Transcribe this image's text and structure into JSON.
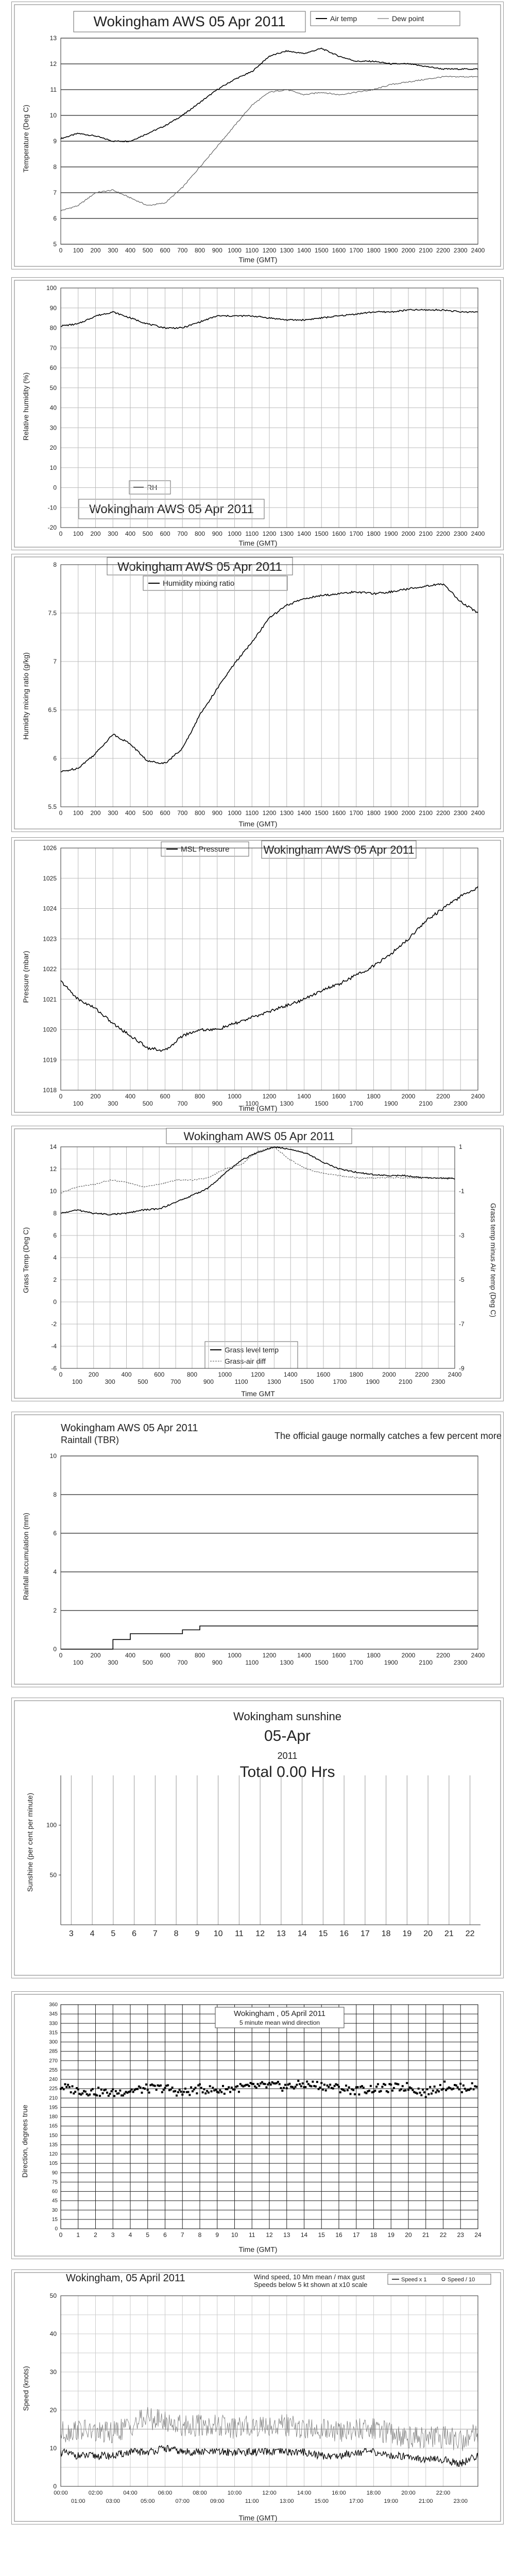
{
  "charts": [
    {
      "title": "Wokingham AWS 05 Apr 2011",
      "xlabel": "Time (GMT)",
      "ylabel": "Temperature (Deg C)",
      "legend": [
        "Air temp",
        "Dew point"
      ]
    },
    {
      "title": "Wokingham AWS 05 Apr 2011",
      "xlabel": "Time (GMT)",
      "ylabel": "Relative humidity (%)",
      "legend": [
        "RH"
      ]
    },
    {
      "title": "Wokingham AWS 05 Apr 2011",
      "xlabel": "Time (GMT)",
      "ylabel": "Humidity mixing ratio (g/kg)",
      "legend": [
        "Humidity mixing ratio"
      ]
    },
    {
      "title": "Wokingham AWS 05 Apr 2011",
      "xlabel": "Time (GMT)",
      "ylabel": "Pressure (mbar)",
      "legend": [
        "MSL Pressure"
      ]
    },
    {
      "title": "Wokingham AWS 05 Apr 2011",
      "xlabel": "Time GMT",
      "ylabel": "Grass Temp (Deg C)",
      "ylabel2": "Grass temp minus Air temp (Deg C)",
      "legend": [
        "Grass level temp",
        "Grass-air diff"
      ]
    },
    {
      "title": "Wokingham AWS 05 Apr 2011",
      "subtitle": "Raintall (TBR)",
      "note": "The official gauge normally catches a few percent more",
      "ylabel": "Rainfall accumulation (mm)"
    },
    {
      "title": "Wokingham sunshine",
      "date": "05-Apr",
      "year": "2011",
      "total": "Total 0.00 Hrs",
      "ylabel": "Sunshine (per cent per minute)"
    },
    {
      "title": "Wokingham , 05 April 2011",
      "subtitle": "5 minute mean wind direction",
      "xlabel": "Time (GMT)",
      "ylabel": "Direction, degrees true"
    },
    {
      "title": "Wokingham,  05 April 2011",
      "subtitle1": "Wind speed, 10 Mm mean / max gust",
      "subtitle2": "Speeds below 5 kt shown at x10 scale",
      "xlabel": "Time (GMT)",
      "ylabel": "Speed (knots)",
      "legend": [
        "Speed x 1",
        "Speed / 10"
      ]
    }
  ],
  "chart_data": [
    {
      "type": "line",
      "title": "Wokingham AWS 05 Apr 2011",
      "xlabel": "Time (GMT)",
      "ylabel": "Temperature (Deg C)",
      "xlim": [
        0,
        2400
      ],
      "ylim": [
        5,
        13
      ],
      "xticks": [
        0,
        100,
        200,
        300,
        400,
        500,
        600,
        700,
        800,
        900,
        1000,
        1100,
        1200,
        1300,
        1400,
        1500,
        1600,
        1700,
        1800,
        1900,
        2000,
        2100,
        2200,
        2300,
        2400
      ],
      "yticks": [
        5,
        6,
        7,
        8,
        9,
        10,
        11,
        12,
        13
      ],
      "grid": "horizontal",
      "legend_position": "top",
      "series": [
        {
          "name": "Air temp",
          "x": [
            0,
            100,
            200,
            300,
            400,
            500,
            600,
            700,
            800,
            900,
            1000,
            1100,
            1200,
            1300,
            1400,
            1500,
            1600,
            1700,
            1800,
            1900,
            2000,
            2100,
            2200,
            2300,
            2400
          ],
          "values": [
            9.1,
            9.3,
            9.2,
            9.0,
            9.0,
            9.3,
            9.6,
            10.0,
            10.5,
            11.0,
            11.4,
            11.7,
            12.3,
            12.5,
            12.4,
            12.6,
            12.3,
            12.1,
            12.1,
            12.0,
            12.0,
            11.9,
            11.8,
            11.8,
            11.8
          ]
        },
        {
          "name": "Dew point",
          "x": [
            0,
            100,
            200,
            300,
            400,
            500,
            600,
            700,
            800,
            900,
            1000,
            1100,
            1200,
            1300,
            1400,
            1500,
            1600,
            1700,
            1800,
            1900,
            2000,
            2100,
            2200,
            2300,
            2400
          ],
          "values": [
            6.3,
            6.5,
            7.0,
            7.1,
            6.8,
            6.5,
            6.6,
            7.2,
            8.0,
            8.8,
            9.6,
            10.4,
            10.9,
            11.0,
            10.8,
            10.9,
            10.8,
            10.9,
            11.0,
            11.2,
            11.3,
            11.4,
            11.5,
            11.5,
            11.5
          ]
        }
      ]
    },
    {
      "type": "line",
      "title": "Wokingham AWS 05 Apr 2011",
      "xlabel": "Time (GMT)",
      "ylabel": "Relative humidity (%)",
      "xlim": [
        0,
        2400
      ],
      "ylim": [
        -20,
        100
      ],
      "xticks": [
        0,
        100,
        200,
        300,
        400,
        500,
        600,
        700,
        800,
        900,
        1000,
        1100,
        1200,
        1300,
        1400,
        1500,
        1600,
        1700,
        1800,
        1900,
        2000,
        2100,
        2200,
        2300,
        2400
      ],
      "yticks": [
        -20,
        -10,
        0,
        10,
        20,
        30,
        40,
        50,
        60,
        70,
        80,
        90,
        100
      ],
      "grid": true,
      "legend_position": "bottom-left",
      "series": [
        {
          "name": "RH",
          "x": [
            0,
            100,
            200,
            300,
            400,
            500,
            600,
            700,
            800,
            900,
            1000,
            1100,
            1200,
            1300,
            1400,
            1500,
            1600,
            1700,
            1800,
            1900,
            2000,
            2100,
            2200,
            2300,
            2400
          ],
          "values": [
            81,
            82,
            86,
            88,
            85,
            82,
            80,
            80,
            83,
            86,
            86,
            86,
            85,
            84,
            84,
            85,
            86,
            87,
            88,
            88,
            89,
            89,
            89,
            88,
            88
          ]
        }
      ]
    },
    {
      "type": "line",
      "title": "Wokingham AWS 05 Apr 2011",
      "xlabel": "Time (GMT)",
      "ylabel": "Humidity mixing ratio (g/kg)",
      "xlim": [
        0,
        2400
      ],
      "ylim": [
        5.5,
        8
      ],
      "xticks": [
        0,
        100,
        200,
        300,
        400,
        500,
        600,
        700,
        800,
        900,
        1000,
        1100,
        1200,
        1300,
        1400,
        1500,
        1600,
        1700,
        1800,
        1900,
        2000,
        2100,
        2200,
        2300,
        2400
      ],
      "yticks": [
        5.5,
        6,
        6.5,
        7,
        7.5,
        8
      ],
      "grid": true,
      "legend_position": "top-left",
      "series": [
        {
          "name": "Humidity mixing ratio",
          "x": [
            0,
            100,
            200,
            300,
            400,
            500,
            600,
            700,
            800,
            900,
            1000,
            1100,
            1200,
            1300,
            1400,
            1500,
            1600,
            1700,
            1800,
            1900,
            2000,
            2100,
            2200,
            2300,
            2400
          ],
          "values": [
            5.86,
            5.9,
            6.05,
            6.25,
            6.15,
            5.97,
            5.95,
            6.1,
            6.45,
            6.72,
            6.98,
            7.2,
            7.45,
            7.58,
            7.65,
            7.68,
            7.7,
            7.72,
            7.7,
            7.72,
            7.75,
            7.78,
            7.8,
            7.62,
            7.5
          ]
        }
      ]
    },
    {
      "type": "line",
      "title": "Wokingham AWS 05 Apr 2011",
      "xlabel": "Time (GMT)",
      "ylabel": "Pressure (mbar)",
      "xlim": [
        0,
        2400
      ],
      "ylim": [
        1018,
        1026
      ],
      "xticks": [
        0,
        100,
        200,
        300,
        400,
        500,
        600,
        700,
        800,
        900,
        1000,
        1100,
        1200,
        1300,
        1400,
        1500,
        1600,
        1700,
        1800,
        1900,
        2000,
        2100,
        2200,
        2300,
        2400
      ],
      "yticks": [
        1018,
        1019,
        1020,
        1021,
        1022,
        1023,
        1024,
        1025,
        1026
      ],
      "grid": true,
      "legend_position": "top-left",
      "series": [
        {
          "name": "MSL Pressure",
          "x": [
            0,
            100,
            200,
            300,
            400,
            500,
            600,
            700,
            800,
            900,
            1000,
            1100,
            1200,
            1300,
            1400,
            1500,
            1600,
            1700,
            1800,
            1900,
            2000,
            2100,
            2200,
            2300,
            2400
          ],
          "values": [
            1021.6,
            1021.0,
            1020.7,
            1020.2,
            1019.8,
            1019.4,
            1019.3,
            1019.8,
            1020.0,
            1020.0,
            1020.2,
            1020.4,
            1020.6,
            1020.8,
            1021.0,
            1021.3,
            1021.5,
            1021.8,
            1022.1,
            1022.5,
            1023.0,
            1023.6,
            1024.0,
            1024.4,
            1024.7
          ]
        }
      ]
    },
    {
      "type": "line",
      "title": "Wokingham AWS 05 Apr 2011",
      "xlabel": "Time GMT",
      "ylabel": "Grass Temp (Deg C)",
      "ylabel2": "Grass temp minus Air temp (Deg C)",
      "xlim": [
        0,
        2400
      ],
      "ylim": [
        -6,
        14
      ],
      "ylim2": [
        -9,
        1
      ],
      "xticks": [
        0,
        100,
        200,
        300,
        400,
        500,
        600,
        700,
        800,
        900,
        1000,
        1100,
        1200,
        1300,
        1400,
        1500,
        1600,
        1700,
        1800,
        1900,
        2000,
        2100,
        2200,
        2300,
        2400
      ],
      "yticks": [
        -6,
        -4,
        -2,
        0,
        2,
        4,
        6,
        8,
        10,
        12,
        14
      ],
      "yticks2": [
        -9,
        -7,
        -5,
        -3,
        -1,
        1
      ],
      "grid": true,
      "legend_position": "bottom-left",
      "series": [
        {
          "name": "Grass level temp",
          "axis": "left",
          "x": [
            0,
            100,
            200,
            300,
            400,
            500,
            600,
            700,
            800,
            900,
            1000,
            1100,
            1200,
            1300,
            1400,
            1500,
            1600,
            1700,
            1800,
            1900,
            2000,
            2100,
            2200,
            2300,
            2400
          ],
          "values": [
            8.0,
            8.3,
            8.0,
            7.9,
            8.0,
            8.3,
            8.4,
            9.0,
            9.6,
            10.3,
            11.6,
            12.8,
            13.5,
            14.0,
            13.8,
            13.4,
            12.6,
            12.0,
            11.7,
            11.5,
            11.4,
            11.4,
            11.2,
            11.2,
            11.1
          ]
        },
        {
          "name": "Grass-air diff",
          "axis": "right",
          "x": [
            0,
            100,
            200,
            300,
            400,
            500,
            600,
            700,
            800,
            900,
            1000,
            1100,
            1200,
            1300,
            1400,
            1500,
            1600,
            1700,
            1800,
            1900,
            2000,
            2100,
            2200,
            2300,
            2400
          ],
          "values": [
            -1.1,
            -0.8,
            -0.7,
            -0.5,
            -0.6,
            -0.8,
            -0.7,
            -0.5,
            -0.5,
            -0.4,
            0.0,
            0.2,
            0.8,
            1.0,
            0.4,
            0.0,
            -0.2,
            -0.3,
            -0.4,
            -0.4,
            -0.4,
            -0.4,
            -0.4,
            -0.4,
            -0.4
          ]
        }
      ]
    },
    {
      "type": "line",
      "title": "Wokingham AWS 05 Apr 2011",
      "ylabel": "Rainfall accumulation (mm)",
      "xlim": [
        0,
        2400
      ],
      "ylim": [
        0,
        10
      ],
      "xticks": [
        0,
        100,
        200,
        300,
        400,
        500,
        600,
        700,
        800,
        900,
        1000,
        1100,
        1200,
        1300,
        1400,
        1500,
        1600,
        1700,
        1800,
        1900,
        2000,
        2100,
        2200,
        2300,
        2400
      ],
      "yticks": [
        0,
        2,
        4,
        6,
        8,
        10
      ],
      "grid": "horizontal",
      "series": [
        {
          "name": "",
          "x": [
            0,
            200,
            300,
            400,
            500,
            700,
            800,
            900,
            2400
          ],
          "values": [
            0,
            0,
            0.5,
            0.8,
            0.8,
            1.0,
            1.2,
            1.2,
            1.2
          ]
        }
      ]
    },
    {
      "type": "bar",
      "title": "Wokingham sunshine",
      "ylabel": "Sunshine (per cent per minute)",
      "categories": [
        "3",
        "4",
        "5",
        "6",
        "7",
        "8",
        "9",
        "10",
        "11",
        "12",
        "13",
        "14",
        "15",
        "16",
        "17",
        "18",
        "19",
        "20",
        "21",
        "22"
      ],
      "values": [
        0,
        0,
        0,
        0,
        0,
        0,
        0,
        0,
        0,
        0,
        0,
        0,
        0,
        0,
        0,
        0,
        0,
        0,
        0,
        0
      ],
      "ylim": [
        0,
        150
      ],
      "yticks": [
        50,
        100
      ],
      "grid": "vertical"
    },
    {
      "type": "scatter",
      "title": "Wokingham , 05 April 2011",
      "subtitle": "5 minute mean wind direction",
      "xlabel": "Time (GMT)",
      "ylabel": "Direction, degrees true",
      "xlim": [
        0,
        24
      ],
      "ylim": [
        0,
        360
      ],
      "xticks": [
        0,
        1,
        2,
        3,
        4,
        5,
        6,
        7,
        8,
        9,
        10,
        11,
        12,
        13,
        14,
        15,
        16,
        17,
        18,
        19,
        20,
        21,
        22,
        23,
        24
      ],
      "yticks": [
        0,
        15,
        30,
        45,
        60,
        75,
        90,
        105,
        120,
        135,
        150,
        165,
        180,
        195,
        210,
        225,
        240,
        255,
        270,
        285,
        300,
        315,
        330,
        345,
        360
      ],
      "grid": true,
      "series": [
        {
          "name": "",
          "x": [
            0,
            1,
            2,
            3,
            4,
            5,
            6,
            7,
            8,
            9,
            10,
            11,
            12,
            13,
            14,
            15,
            16,
            17,
            18,
            19,
            20,
            21,
            22,
            23,
            24
          ],
          "values": [
            228,
            222,
            220,
            218,
            222,
            225,
            226,
            218,
            225,
            222,
            226,
            228,
            230,
            228,
            232,
            230,
            226,
            222,
            225,
            226,
            228,
            218,
            230,
            226,
            228
          ]
        }
      ]
    },
    {
      "type": "line",
      "title": "Wokingham,  05 April 2011",
      "xlabel": "Time (GMT)",
      "ylabel": "Speed (knots)",
      "xlim": [
        0,
        24
      ],
      "ylim": [
        0,
        50
      ],
      "xticks_top": [
        "00:00",
        "02:00",
        "04:00",
        "06:00",
        "08:00",
        "10:00",
        "12:00",
        "14:00",
        "16:00",
        "18:00",
        "20:00",
        "22:00"
      ],
      "xticks_bottom": [
        "01:00",
        "03:00",
        "05:00",
        "07:00",
        "09:00",
        "11:00",
        "13:00",
        "15:00",
        "17:00",
        "19:00",
        "21:00",
        "23:00"
      ],
      "yticks": [
        0,
        10,
        20,
        30,
        40,
        50
      ],
      "grid": true,
      "legend_position": "top-right",
      "series": [
        {
          "name": "Speed x 1",
          "x": [
            0,
            1,
            2,
            3,
            4,
            5,
            6,
            7,
            8,
            9,
            10,
            11,
            12,
            13,
            14,
            15,
            16,
            17,
            18,
            19,
            20,
            21,
            22,
            23,
            24
          ],
          "values": [
            9,
            8,
            8,
            8,
            9,
            9,
            10,
            9,
            9,
            9,
            9,
            9,
            9,
            9,
            9,
            8,
            8,
            9,
            9,
            8,
            8,
            7,
            7,
            6,
            8
          ]
        },
        {
          "name": "Speed / 10",
          "x": [
            0,
            1,
            2,
            3,
            4,
            5,
            6,
            7,
            8,
            9,
            10,
            11,
            12,
            13,
            14,
            15,
            16,
            17,
            18,
            19,
            20,
            21,
            22,
            23,
            24
          ],
          "values": [
            14,
            15,
            14,
            14,
            16,
            18,
            17,
            16,
            16,
            16,
            15,
            16,
            16,
            16,
            15,
            15,
            14,
            15,
            15,
            14,
            13,
            13,
            13,
            12,
            14
          ]
        }
      ]
    }
  ]
}
